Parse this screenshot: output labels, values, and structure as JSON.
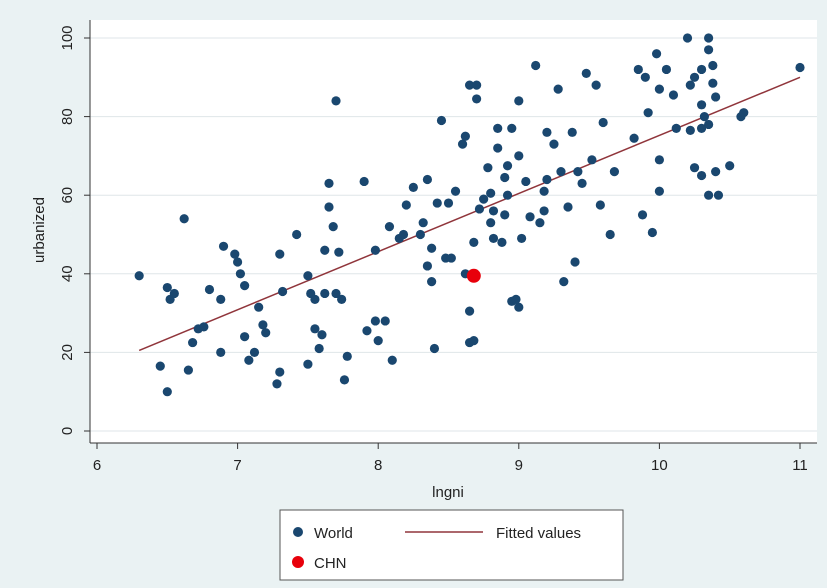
{
  "chart_data": {
    "type": "scatter",
    "xlabel": "lngni",
    "ylabel": "urbanized",
    "xlim": [
      6,
      11
    ],
    "ylim": [
      0,
      100
    ],
    "xticks": [
      6,
      7,
      8,
      9,
      10,
      11
    ],
    "yticks": [
      0,
      20,
      40,
      60,
      80,
      100
    ],
    "grid": "horizontal",
    "legend_position": "bottom",
    "colors": {
      "world": "#1a476f",
      "chn": "#e8000b",
      "fit": "#90353b",
      "plot_bg": "#ffffff",
      "outer_bg": "#eaf2f3",
      "grid": "#dfe6e8"
    },
    "series": [
      {
        "name": "World",
        "kind": "scatter",
        "points": [
          [
            6.3,
            39.5
          ],
          [
            6.45,
            16.5
          ],
          [
            6.5,
            10
          ],
          [
            6.5,
            36.5
          ],
          [
            6.52,
            33.5
          ],
          [
            6.55,
            35
          ],
          [
            6.62,
            54
          ],
          [
            6.65,
            15.5
          ],
          [
            6.68,
            22.5
          ],
          [
            6.72,
            26
          ],
          [
            6.76,
            26.5
          ],
          [
            6.8,
            36
          ],
          [
            6.88,
            20
          ],
          [
            6.88,
            33.5
          ],
          [
            6.9,
            47
          ],
          [
            6.98,
            45
          ],
          [
            7.0,
            43
          ],
          [
            7.02,
            40
          ],
          [
            7.05,
            37
          ],
          [
            7.05,
            24
          ],
          [
            7.08,
            18
          ],
          [
            7.12,
            20
          ],
          [
            7.15,
            31.5
          ],
          [
            7.18,
            27
          ],
          [
            7.2,
            25
          ],
          [
            7.28,
            12
          ],
          [
            7.3,
            15
          ],
          [
            7.3,
            45
          ],
          [
            7.32,
            35.5
          ],
          [
            7.42,
            50
          ],
          [
            7.5,
            39.5
          ],
          [
            7.5,
            17
          ],
          [
            7.52,
            35
          ],
          [
            7.55,
            33.5
          ],
          [
            7.55,
            26
          ],
          [
            7.58,
            21
          ],
          [
            7.6,
            24.5
          ],
          [
            7.62,
            46
          ],
          [
            7.62,
            35
          ],
          [
            7.65,
            63
          ],
          [
            7.65,
            57
          ],
          [
            7.68,
            52
          ],
          [
            7.7,
            84
          ],
          [
            7.7,
            35
          ],
          [
            7.72,
            45.5
          ],
          [
            7.74,
            33.5
          ],
          [
            7.76,
            13
          ],
          [
            7.78,
            19
          ],
          [
            7.9,
            63.5
          ],
          [
            7.92,
            25.5
          ],
          [
            7.98,
            46
          ],
          [
            7.98,
            28
          ],
          [
            8.0,
            23
          ],
          [
            8.05,
            28
          ],
          [
            8.08,
            52
          ],
          [
            8.1,
            18
          ],
          [
            8.15,
            49
          ],
          [
            8.18,
            50
          ],
          [
            8.2,
            57.5
          ],
          [
            8.25,
            62
          ],
          [
            8.3,
            50
          ],
          [
            8.32,
            53
          ],
          [
            8.35,
            64
          ],
          [
            8.35,
            42
          ],
          [
            8.38,
            46.5
          ],
          [
            8.38,
            38
          ],
          [
            8.4,
            21
          ],
          [
            8.42,
            58
          ],
          [
            8.45,
            79
          ],
          [
            8.48,
            44
          ],
          [
            8.5,
            58
          ],
          [
            8.52,
            44
          ],
          [
            8.55,
            61
          ],
          [
            8.6,
            73
          ],
          [
            8.62,
            40
          ],
          [
            8.62,
            75
          ],
          [
            8.65,
            88
          ],
          [
            8.65,
            30.5
          ],
          [
            8.65,
            22.5
          ],
          [
            8.68,
            23
          ],
          [
            8.68,
            48
          ],
          [
            8.7,
            84.5
          ],
          [
            8.7,
            88
          ],
          [
            8.72,
            56.5
          ],
          [
            8.75,
            59
          ],
          [
            8.78,
            67
          ],
          [
            8.8,
            53
          ],
          [
            8.8,
            60.5
          ],
          [
            8.82,
            49
          ],
          [
            8.82,
            56
          ],
          [
            8.85,
            77
          ],
          [
            8.85,
            72
          ],
          [
            8.88,
            48
          ],
          [
            8.9,
            55
          ],
          [
            8.9,
            64.5
          ],
          [
            8.92,
            60
          ],
          [
            8.92,
            67.5
          ],
          [
            8.95,
            77
          ],
          [
            8.95,
            33
          ],
          [
            8.98,
            33.5
          ],
          [
            9.0,
            84
          ],
          [
            9.0,
            70
          ],
          [
            9.0,
            31.5
          ],
          [
            9.02,
            49
          ],
          [
            9.05,
            63.5
          ],
          [
            9.08,
            54.5
          ],
          [
            9.12,
            93
          ],
          [
            9.15,
            53
          ],
          [
            9.18,
            56
          ],
          [
            9.18,
            61
          ],
          [
            9.2,
            64
          ],
          [
            9.2,
            76
          ],
          [
            9.25,
            73
          ],
          [
            9.28,
            87
          ],
          [
            9.3,
            66
          ],
          [
            9.32,
            38
          ],
          [
            9.35,
            57
          ],
          [
            9.38,
            76
          ],
          [
            9.4,
            43
          ],
          [
            9.42,
            66
          ],
          [
            9.45,
            63
          ],
          [
            9.48,
            91
          ],
          [
            9.52,
            69
          ],
          [
            9.55,
            88
          ],
          [
            9.58,
            57.5
          ],
          [
            9.6,
            78.5
          ],
          [
            9.65,
            50
          ],
          [
            9.68,
            66
          ],
          [
            9.82,
            74.5
          ],
          [
            9.85,
            92
          ],
          [
            9.88,
            55
          ],
          [
            9.9,
            90
          ],
          [
            9.92,
            81
          ],
          [
            9.95,
            50.5
          ],
          [
            9.98,
            96
          ],
          [
            10.0,
            87
          ],
          [
            10.0,
            69
          ],
          [
            10.0,
            61
          ],
          [
            10.05,
            92
          ],
          [
            10.1,
            85.5
          ],
          [
            10.12,
            77
          ],
          [
            10.2,
            100
          ],
          [
            10.22,
            88
          ],
          [
            10.22,
            76.5
          ],
          [
            10.25,
            90
          ],
          [
            10.25,
            67
          ],
          [
            10.3,
            92
          ],
          [
            10.3,
            83
          ],
          [
            10.3,
            77
          ],
          [
            10.3,
            65
          ],
          [
            10.32,
            80
          ],
          [
            10.35,
            97
          ],
          [
            10.35,
            100
          ],
          [
            10.35,
            78
          ],
          [
            10.35,
            60
          ],
          [
            10.38,
            93
          ],
          [
            10.38,
            88.5
          ],
          [
            10.4,
            85
          ],
          [
            10.4,
            66
          ],
          [
            10.42,
            60
          ],
          [
            10.5,
            67.5
          ],
          [
            10.58,
            80
          ],
          [
            10.6,
            81
          ],
          [
            11.0,
            92.5
          ]
        ]
      },
      {
        "name": "CHN",
        "kind": "scatter",
        "points": [
          [
            8.68,
            39.5
          ]
        ]
      },
      {
        "name": "Fitted values",
        "kind": "line",
        "points": [
          [
            6.3,
            20.5
          ],
          [
            11.0,
            90
          ]
        ]
      }
    ]
  }
}
